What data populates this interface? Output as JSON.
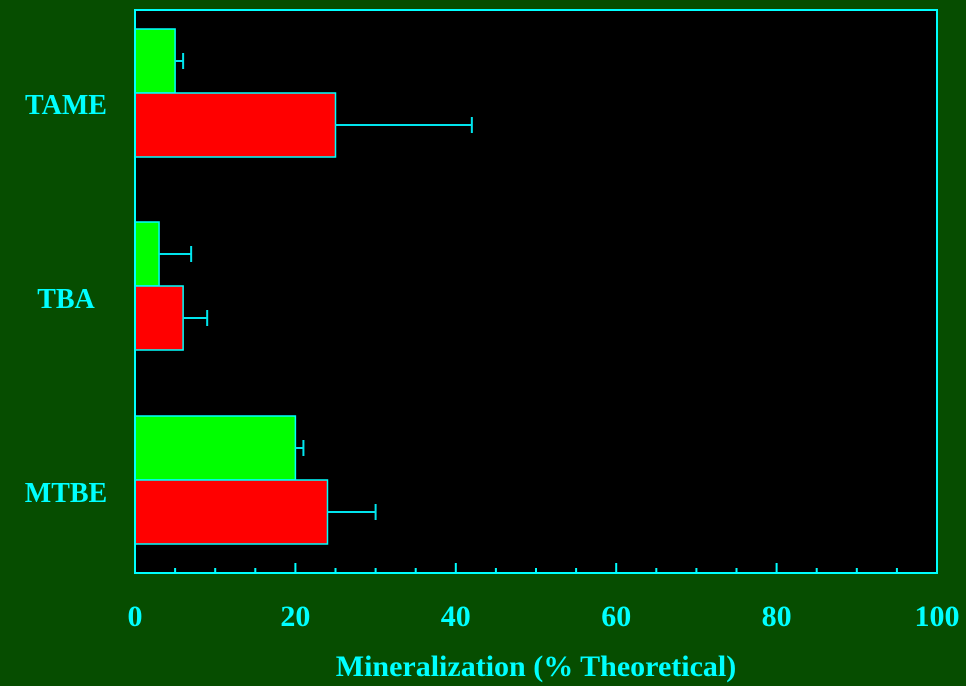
{
  "chart_data": {
    "type": "bar",
    "orientation": "horizontal",
    "categories": [
      "TAME",
      "TBA",
      "MTBE"
    ],
    "series": [
      {
        "values": [
          5,
          3,
          20
        ],
        "errors": [
          1,
          4,
          1
        ]
      },
      {
        "values": [
          25,
          6,
          24
        ],
        "errors": [
          17,
          3,
          6
        ]
      }
    ],
    "xlabel": "Mineralization (% Theoretical)",
    "ylabel": "",
    "title": "",
    "xlim": [
      0,
      100
    ],
    "xticks": [
      "0",
      "20",
      "40",
      "60",
      "80",
      "100"
    ],
    "grid": false,
    "legend": "none"
  },
  "colors": {
    "page_background": "#064d00",
    "plot_background": "#000000",
    "frame_and_text": "#00ffff",
    "series": [
      "#00ff00",
      "#ff0000"
    ],
    "error_bar": "#00e5ee"
  }
}
